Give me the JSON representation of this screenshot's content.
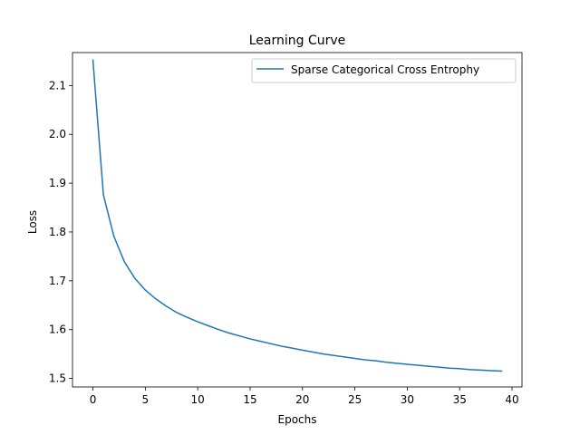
{
  "chart_data": {
    "type": "line",
    "title": "Learning Curve",
    "xlabel": "Epochs",
    "ylabel": "Loss",
    "xlim": [
      -1.95,
      40.95
    ],
    "ylim": [
      1.4825,
      2.1675
    ],
    "xticks": [
      0,
      5,
      10,
      15,
      20,
      25,
      30,
      35,
      40
    ],
    "yticks": [
      1.5,
      1.6,
      1.7,
      1.8,
      1.9,
      2.0,
      2.1
    ],
    "ytick_labels": [
      "1.5",
      "1.6",
      "1.7",
      "1.8",
      "1.9",
      "2.0",
      "2.1"
    ],
    "grid": false,
    "legend_position": "top-right",
    "series": [
      {
        "name": "Sparse Categorical Cross Entrophy",
        "color": "#1f77b4",
        "x": [
          0,
          1,
          2,
          3,
          4,
          5,
          6,
          7,
          8,
          9,
          10,
          11,
          12,
          13,
          14,
          15,
          16,
          17,
          18,
          19,
          20,
          21,
          22,
          23,
          24,
          25,
          26,
          27,
          28,
          29,
          30,
          31,
          32,
          33,
          34,
          35,
          36,
          37,
          38,
          39
        ],
        "y": [
          2.152,
          1.876,
          1.791,
          1.739,
          1.705,
          1.681,
          1.663,
          1.648,
          1.635,
          1.625,
          1.616,
          1.608,
          1.6,
          1.593,
          1.587,
          1.581,
          1.576,
          1.571,
          1.566,
          1.562,
          1.558,
          1.554,
          1.55,
          1.547,
          1.544,
          1.541,
          1.538,
          1.536,
          1.533,
          1.531,
          1.529,
          1.527,
          1.525,
          1.523,
          1.521,
          1.52,
          1.518,
          1.517,
          1.516,
          1.515
        ]
      }
    ]
  }
}
